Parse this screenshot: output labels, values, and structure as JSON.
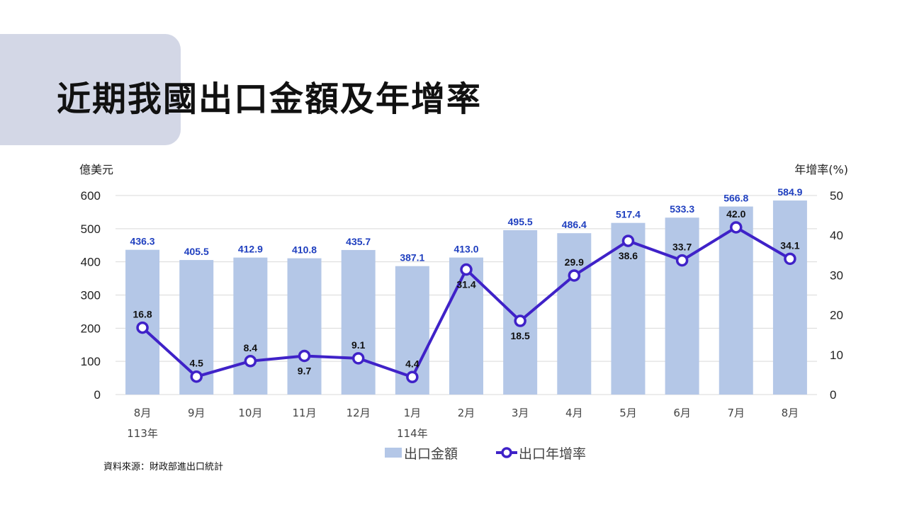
{
  "title": "近期我國出口金額及年增率",
  "source": "資料來源：財政部進出口統計",
  "colors": {
    "bar": "#b4c7e7",
    "line": "#3f22c8",
    "bar_label": "#1f3fbf"
  },
  "chart_data": {
    "type": "bar+line",
    "categories": [
      "8月",
      "9月",
      "10月",
      "11月",
      "12月",
      "1月",
      "2月",
      "3月",
      "4月",
      "5月",
      "6月",
      "7月",
      "8月"
    ],
    "year_labels": [
      {
        "index": 0,
        "label": "113年"
      },
      {
        "index": 5,
        "label": "114年"
      }
    ],
    "series": [
      {
        "name": "出口金額",
        "type": "bar",
        "axis": "left",
        "values": [
          436.3,
          405.5,
          412.9,
          410.8,
          435.7,
          387.1,
          413.0,
          495.5,
          486.4,
          517.4,
          533.3,
          566.8,
          584.9
        ]
      },
      {
        "name": "出口年增率",
        "type": "line",
        "axis": "right",
        "values": [
          16.8,
          4.5,
          8.4,
          9.7,
          9.1,
          4.4,
          31.4,
          18.5,
          29.9,
          38.6,
          33.7,
          42.0,
          34.1
        ]
      }
    ],
    "left_axis": {
      "label": "億美元",
      "ylim": [
        0,
        600
      ],
      "ticks": [
        0,
        100,
        200,
        300,
        400,
        500,
        600
      ]
    },
    "right_axis": {
      "label": "年增率(%)",
      "ylim": [
        0,
        50
      ],
      "ticks": [
        0,
        10,
        20,
        30,
        40,
        50
      ]
    },
    "legend_position": "bottom",
    "grid": true
  }
}
